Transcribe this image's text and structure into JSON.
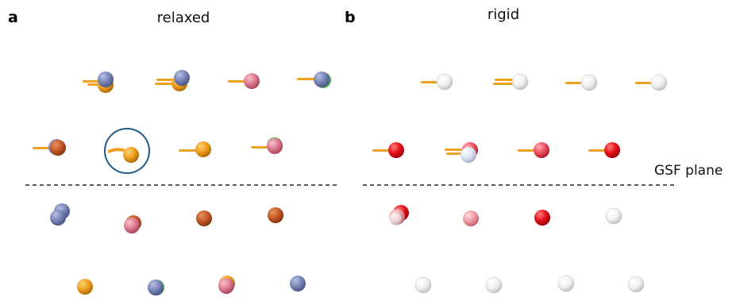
{
  "panels": [
    {
      "letter": "a",
      "title": "relaxed"
    },
    {
      "letter": "b",
      "title": "rigid"
    }
  ],
  "plane_label": "GSF plane",
  "colors": {
    "orange": "#f0a020",
    "blue": "#7a87b8",
    "pink": "#e07c92",
    "rust": "#c65a2a",
    "red": "#e8121c",
    "light_pink": "#ef9ca6",
    "white": "#f2f2f2",
    "stick": "#f0a020",
    "highlight_circle": "#1f5a8a",
    "green_tint": "#4caf50"
  },
  "highlight": {
    "panel": "a",
    "row": 1,
    "index": 1
  }
}
